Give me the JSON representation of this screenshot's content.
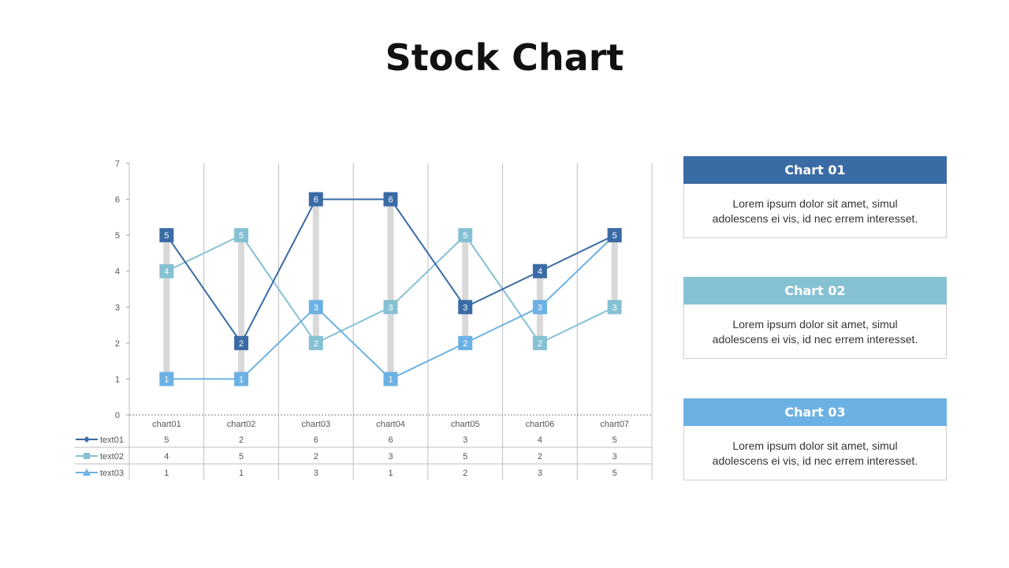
{
  "page": {
    "title": "Stock Chart"
  },
  "chart_data": {
    "type": "line",
    "title": "",
    "ylim": [
      0,
      7
    ],
    "yticks": [
      "0",
      "1",
      "2",
      "3",
      "4",
      "5",
      "6",
      "7"
    ],
    "categories": [
      "chart01",
      "chart02",
      "chart03",
      "chart04",
      "chart05",
      "chart06",
      "chart07"
    ],
    "series": [
      {
        "name": "text01",
        "values": [
          5,
          2,
          6,
          6,
          3,
          4,
          5
        ],
        "color": "#3a6ba5",
        "marker": "diamond"
      },
      {
        "name": "text02",
        "values": [
          4,
          5,
          2,
          3,
          5,
          2,
          3
        ],
        "color": "#86c1d3",
        "marker": "square"
      },
      {
        "name": "text03",
        "values": [
          1,
          1,
          3,
          1,
          2,
          3,
          5
        ],
        "color": "#6cb1e3",
        "marker": "triangle"
      }
    ],
    "high_low_lines": true,
    "data_table": true,
    "grid": "vertical",
    "colors": {
      "range_bar": "#d9d9d9",
      "grid": "#bfbfbf"
    }
  },
  "cards": [
    {
      "title": "Chart 01",
      "color": "#3a6ba5",
      "line1": "Lorem ipsum dolor sit amet, simul",
      "line2": "adolescens ei vis, id nec errem  interesset."
    },
    {
      "title": "Chart 02",
      "color": "#86c1d3",
      "line1": "Lorem ipsum dolor sit amet, simul",
      "line2": "adolescens ei vis, id nec errem  interesset."
    },
    {
      "title": "Chart 03",
      "color": "#6cb1e3",
      "line1": "Lorem ipsum dolor sit amet, simul",
      "line2": "adolescens ei vis, id nec errem  interesset."
    }
  ]
}
